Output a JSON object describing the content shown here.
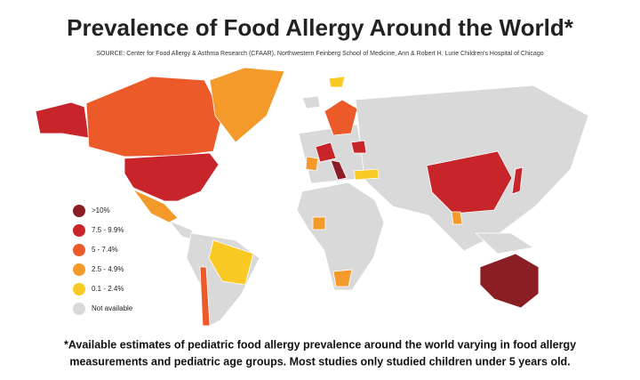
{
  "title": "Prevalence of Food Allergy Around the World*",
  "source": "SOURCE: Center for Food Allergy & Asthma Research (CFAAR), Northwestern Feinberg School of Medicine, Ann & Robert H. Lurie Children's Hospital of Chicago",
  "legend": [
    {
      "label": ">10%",
      "color": "#8b1e24"
    },
    {
      "label": "7.5 - 9.9%",
      "color": "#c8252b"
    },
    {
      "label": "5 - 7.4%",
      "color": "#ec5a2a"
    },
    {
      "label": "2.5 - 4.9%",
      "color": "#f39a2b"
    },
    {
      "label": "0.1 - 2.4%",
      "color": "#f9c924"
    },
    {
      "label": "Not available",
      "color": "#d9d9d9"
    }
  ],
  "footnote": [
    "*Available estimates of pediatric food allergy prevalence around the world varying in food allergy",
    "measurements and pediatric age groups. Most studies only studied children under 5 years old."
  ]
}
